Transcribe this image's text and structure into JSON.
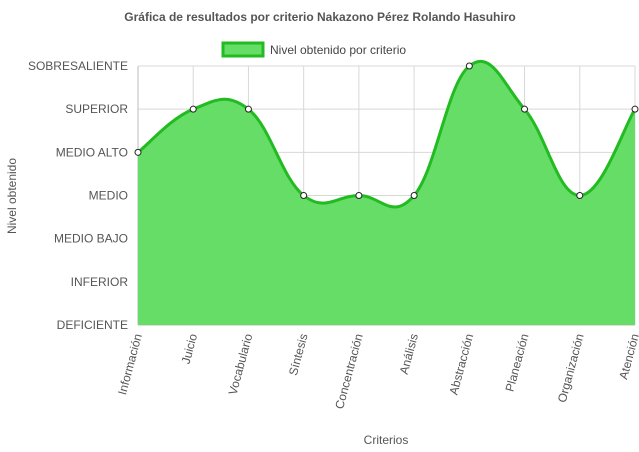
{
  "chart_data": {
    "type": "area",
    "title": "Gráfica de resultados por criterio Nakazono Pérez Rolando Hasuhiro",
    "xlabel": "Criterios",
    "ylabel": "Nivel obtenido",
    "legend": {
      "position": "top",
      "entries": [
        "Nivel obtenido por criterio"
      ]
    },
    "levels": [
      "DEFICIENTE",
      "INFERIOR",
      "MEDIO BAJO",
      "MEDIO",
      "MEDIO ALTO",
      "SUPERIOR",
      "SOBRESALIENTE"
    ],
    "categories": [
      "Información",
      "Juicio",
      "Vocabulario",
      "Síntesis",
      "Concentración",
      "Análisis",
      "Abstracción",
      "Planeación",
      "Organización",
      "Atención"
    ],
    "series": [
      {
        "name": "Nivel obtenido por criterio",
        "values": [
          "MEDIO ALTO",
          "SUPERIOR",
          "SUPERIOR",
          "MEDIO",
          "MEDIO",
          "MEDIO",
          "SOBRESALIENTE",
          "SUPERIOR",
          "MEDIO",
          "SUPERIOR"
        ],
        "fill_color": "#66dd66",
        "line_color": "#22bb22"
      }
    ],
    "grid": true
  }
}
